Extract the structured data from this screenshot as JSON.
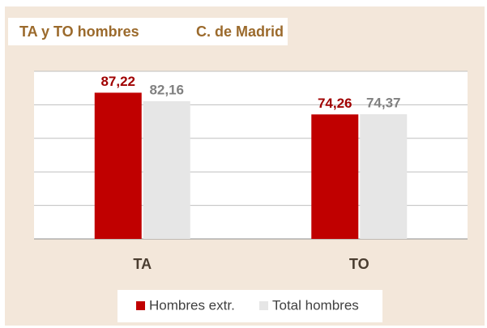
{
  "chart_data": {
    "type": "bar",
    "title": "TA y TO hombres",
    "subtitle": "C. de Madrid",
    "categories": [
      "TA",
      "TO"
    ],
    "series": [
      {
        "name": "Hombres extr.",
        "color": "#c00000",
        "label_color": "#a00000",
        "values": [
          87.22,
          74.26
        ],
        "value_labels": [
          "87,22",
          "74,26"
        ]
      },
      {
        "name": "Total hombres",
        "color": "#e6e6e6",
        "label_color": "#808080",
        "values": [
          82.16,
          74.37
        ],
        "value_labels": [
          "82,16",
          "74,37"
        ]
      }
    ],
    "ylim": [
      0,
      100
    ],
    "yticks": [
      0,
      20,
      40,
      60,
      80,
      100
    ],
    "grid": true,
    "legend": "bottom"
  }
}
